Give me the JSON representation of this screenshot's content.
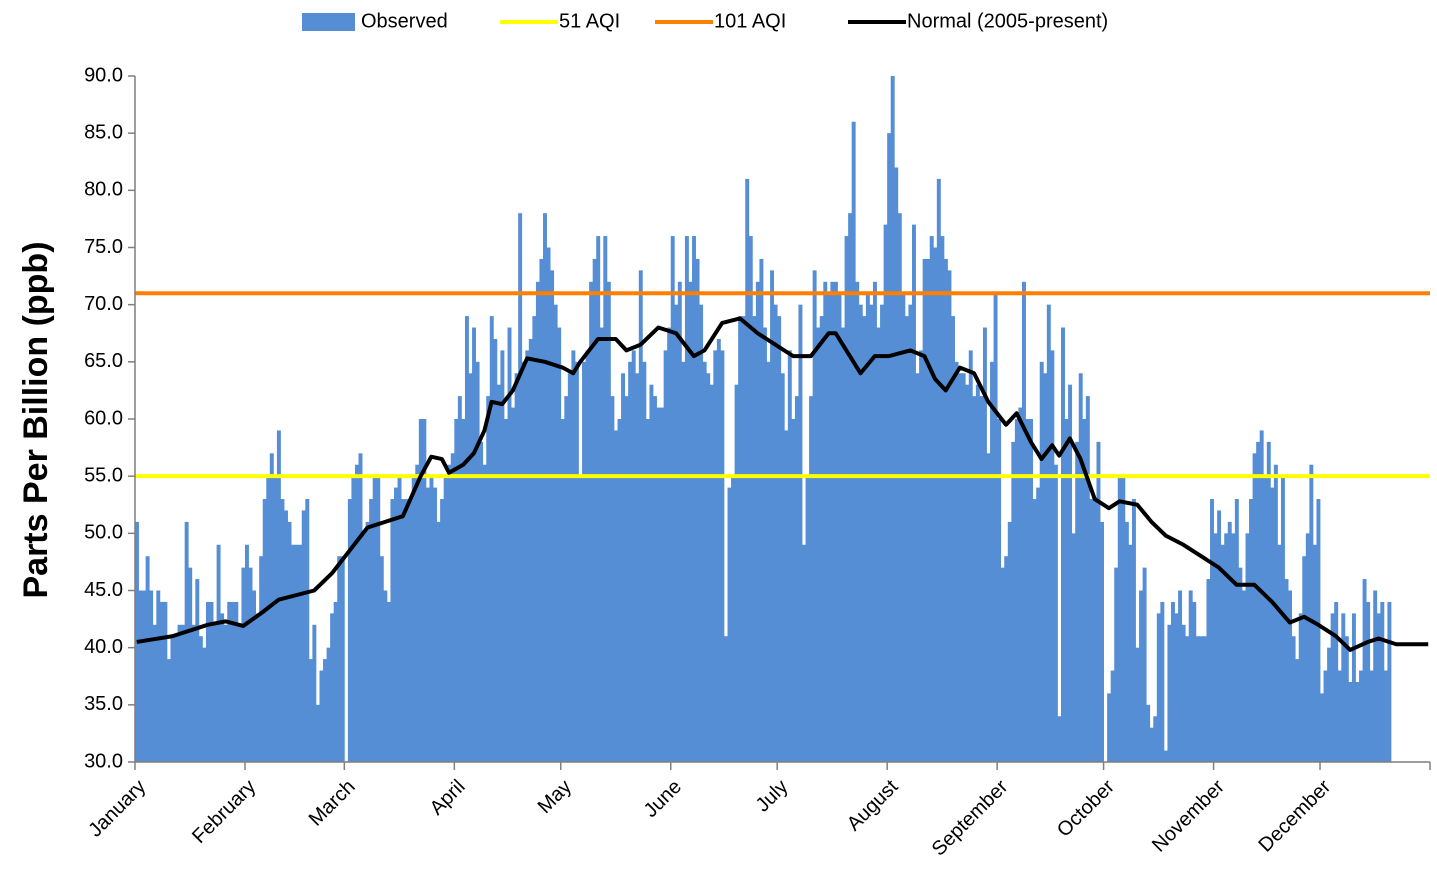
{
  "chart_data": {
    "type": "bar",
    "y_label": "Parts Per Billion (ppb)",
    "ylim": [
      30,
      90
    ],
    "yticks": [
      {
        "value": 30,
        "label": "30.0"
      },
      {
        "value": 35,
        "label": "35.0"
      },
      {
        "value": 40,
        "label": "40.0"
      },
      {
        "value": 45,
        "label": "45.0"
      },
      {
        "value": 50,
        "label": "50.0"
      },
      {
        "value": 55,
        "label": "55.0"
      },
      {
        "value": 60,
        "label": "60.0"
      },
      {
        "value": 65,
        "label": "65.0"
      },
      {
        "value": 70,
        "label": "70.0"
      },
      {
        "value": 75,
        "label": "75.0"
      },
      {
        "value": 80,
        "label": "80.0"
      },
      {
        "value": 85,
        "label": "85.0"
      },
      {
        "value": 90,
        "label": "90.0"
      }
    ],
    "grid": false,
    "legend": "top",
    "categories": [
      "January",
      null,
      null,
      null,
      null,
      null,
      null,
      null,
      null,
      null,
      null,
      null,
      null,
      null,
      null,
      null,
      null,
      null,
      null,
      null,
      null,
      null,
      null,
      null,
      null,
      null,
      null,
      null,
      null,
      null,
      null,
      "February",
      null,
      null,
      null,
      null,
      null,
      null,
      null,
      null,
      null,
      null,
      null,
      null,
      null,
      null,
      null,
      null,
      null,
      null,
      null,
      null,
      null,
      null,
      null,
      null,
      null,
      null,
      null,
      "March",
      null,
      null,
      null,
      null,
      null,
      null,
      null,
      null,
      null,
      null,
      null,
      null,
      null,
      null,
      null,
      null,
      null,
      null,
      null,
      null,
      null,
      null,
      null,
      null,
      null,
      null,
      null,
      null,
      null,
      null,
      "April",
      null,
      null,
      null,
      null,
      null,
      null,
      null,
      null,
      null,
      null,
      null,
      null,
      null,
      null,
      null,
      null,
      null,
      null,
      null,
      null,
      null,
      null,
      null,
      null,
      null,
      null,
      null,
      null,
      null,
      "May",
      null,
      null,
      null,
      null,
      null,
      null,
      null,
      null,
      null,
      null,
      null,
      null,
      null,
      null,
      null,
      null,
      null,
      null,
      null,
      null,
      null,
      null,
      null,
      null,
      null,
      null,
      null,
      null,
      null,
      null,
      "June",
      null,
      null,
      null,
      null,
      null,
      null,
      null,
      null,
      null,
      null,
      null,
      null,
      null,
      null,
      null,
      null,
      null,
      null,
      null,
      null,
      null,
      null,
      null,
      null,
      null,
      null,
      null,
      null,
      null,
      "July",
      null,
      null,
      null,
      null,
      null,
      null,
      null,
      null,
      null,
      null,
      null,
      null,
      null,
      null,
      null,
      null,
      null,
      null,
      null,
      null,
      null,
      null,
      null,
      null,
      null,
      null,
      null,
      null,
      null,
      null,
      "August",
      null,
      null,
      null,
      null,
      null,
      null,
      null,
      null,
      null,
      null,
      null,
      null,
      null,
      null,
      null,
      null,
      null,
      null,
      null,
      null,
      null,
      null,
      null,
      null,
      null,
      null,
      null,
      null,
      null,
      null,
      "September",
      null,
      null,
      null,
      null,
      null,
      null,
      null,
      null,
      null,
      null,
      null,
      null,
      null,
      null,
      null,
      null,
      null,
      null,
      null,
      null,
      null,
      null,
      null,
      null,
      null,
      null,
      null,
      null,
      null,
      "October",
      null,
      null,
      null,
      null,
      null,
      null,
      null,
      null,
      null,
      null,
      null,
      null,
      null,
      null,
      null,
      null,
      null,
      null,
      null,
      null,
      null,
      null,
      null,
      null,
      null,
      null,
      null,
      null,
      null,
      null,
      "November",
      null,
      null,
      null,
      null,
      null,
      null,
      null,
      null,
      null,
      null,
      null,
      null,
      null,
      null,
      null,
      null,
      null,
      null,
      null,
      null,
      null,
      null,
      null,
      null,
      null,
      null,
      null,
      null,
      null,
      "December",
      null,
      null,
      null,
      null,
      null,
      null,
      null,
      null,
      null,
      null,
      null,
      null,
      null,
      null,
      null,
      null,
      null,
      null,
      null,
      null,
      null,
      null,
      null,
      null,
      null,
      null,
      null,
      null,
      null,
      null
    ],
    "series": [
      {
        "name": "Observed",
        "type": "bar",
        "color": "#558ed5",
        "values": [
          51,
          45,
          45,
          48,
          45,
          42,
          45,
          44,
          44,
          39,
          41,
          41,
          42,
          42,
          51,
          47,
          42,
          46,
          41,
          40,
          44,
          44,
          42,
          49,
          43,
          42,
          44,
          44,
          44,
          42,
          47,
          49,
          47,
          45,
          43,
          48,
          53,
          55,
          57,
          55,
          59,
          53,
          52,
          51,
          49,
          49,
          49,
          52,
          53,
          39,
          42,
          35,
          38,
          39,
          40,
          43,
          44,
          48,
          48,
          30,
          53,
          55,
          56,
          57,
          50,
          51,
          53,
          55,
          55,
          48,
          45,
          44,
          53,
          54,
          55,
          53,
          53,
          53,
          55,
          56,
          60,
          60,
          54,
          55,
          54,
          51,
          53,
          55,
          56,
          57,
          60,
          62,
          60,
          69,
          64,
          68,
          65,
          58,
          56,
          62,
          69,
          67,
          63,
          66,
          60,
          68,
          61,
          64,
          78,
          65,
          66,
          67,
          69,
          72,
          74,
          78,
          75,
          73,
          70,
          68,
          60,
          62,
          64,
          66,
          65,
          55,
          65,
          66,
          72,
          74,
          76,
          68,
          76,
          72,
          62,
          59,
          60,
          64,
          62,
          65,
          66,
          64,
          73,
          65,
          60,
          63,
          62,
          61,
          61,
          66,
          68,
          76,
          70,
          72,
          65,
          76,
          72,
          76,
          74,
          70,
          65,
          64,
          63,
          66,
          67,
          66,
          41,
          54,
          55,
          63,
          69,
          69,
          81,
          76,
          69,
          72,
          74,
          68,
          65,
          73,
          70,
          69,
          64,
          59,
          66,
          60,
          62,
          70,
          49,
          55,
          62,
          73,
          68,
          69,
          72,
          71,
          72,
          72,
          71,
          68,
          76,
          78,
          86,
          72,
          70,
          69,
          71,
          70,
          72,
          68,
          70,
          77,
          85,
          90,
          82,
          78,
          71,
          69,
          70,
          77,
          64,
          66,
          74,
          74,
          76,
          75,
          81,
          76,
          74,
          73,
          69,
          65,
          64,
          64,
          63,
          66,
          62,
          63,
          62,
          68,
          57,
          65,
          71,
          60,
          47,
          48,
          51,
          58,
          60,
          61,
          72,
          60,
          60,
          53,
          54,
          65,
          64,
          70,
          66,
          56,
          34,
          68,
          60,
          63,
          50,
          58,
          64,
          60,
          62,
          53,
          53,
          58,
          51,
          30,
          36,
          38,
          47,
          55,
          55,
          51,
          49,
          53,
          40,
          45,
          47,
          35,
          33,
          34,
          43,
          44,
          31,
          42,
          44,
          43,
          45,
          42,
          41,
          45,
          44,
          41,
          41,
          41,
          46,
          53,
          50,
          52,
          49,
          50,
          51,
          50,
          53,
          47,
          45,
          50,
          53,
          57,
          58,
          59,
          55,
          58,
          54,
          56,
          49,
          55,
          46,
          45,
          41,
          39,
          43,
          48,
          50,
          56,
          49,
          53,
          36,
          38,
          40,
          43,
          44,
          38,
          43,
          41,
          37,
          43,
          37,
          38,
          46,
          44,
          38,
          45,
          43,
          44,
          38,
          44,
          null,
          null,
          null,
          null,
          null,
          null,
          null,
          null,
          null,
          null,
          null
        ]
      },
      {
        "name": "51 AQI",
        "type": "hline",
        "color": "#ffff00",
        "value": 55
      },
      {
        "name": "101 AQI",
        "type": "hline",
        "color": "#ff7f00",
        "value": 71
      },
      {
        "name": "Normal (2005-present)",
        "type": "line",
        "color": "#000000",
        "x": [
          0,
          10,
          20,
          25,
          30,
          35,
          40,
          50,
          55,
          60,
          65,
          70,
          75,
          80,
          83,
          86,
          88,
          92,
          95,
          98,
          100,
          103,
          106,
          110,
          115,
          120,
          123,
          125,
          130,
          135,
          138,
          142,
          147,
          152,
          157,
          160,
          165,
          170,
          175,
          180,
          185,
          190,
          195,
          197,
          200,
          204,
          208,
          212,
          218,
          222,
          225,
          228,
          232,
          236,
          240,
          245,
          248,
          252,
          255,
          258,
          260,
          263,
          266,
          270,
          274,
          277,
          282,
          286,
          290,
          295,
          300,
          305,
          310,
          315,
          320,
          325,
          329,
          333,
          338,
          342,
          347,
          350,
          355,
          364
        ],
        "values": [
          40.5,
          41,
          42,
          42.3,
          41.9,
          43,
          44.2,
          45,
          46.5,
          48.5,
          50.5,
          51,
          51.5,
          55,
          56.7,
          56.5,
          55.3,
          56,
          57,
          59,
          61.5,
          61.3,
          62.5,
          65.3,
          65,
          64.5,
          64,
          65,
          67,
          67,
          66,
          66.5,
          68,
          67.5,
          65.5,
          66,
          68.4,
          68.8,
          67.5,
          66.5,
          65.5,
          65.5,
          67.5,
          67.5,
          66,
          64,
          65.5,
          65.5,
          66,
          65.5,
          63.5,
          62.5,
          64.5,
          64,
          61.5,
          59.5,
          60.5,
          58,
          56.5,
          57.7,
          56.8,
          58.3,
          56.5,
          53,
          52.2,
          52.8,
          52.5,
          51,
          49.8,
          49,
          48,
          47,
          45.5,
          45.5,
          44,
          42.2,
          42.7,
          42,
          41,
          39.8,
          40.5,
          40.8,
          40.3,
          40.3
        ]
      }
    ]
  }
}
